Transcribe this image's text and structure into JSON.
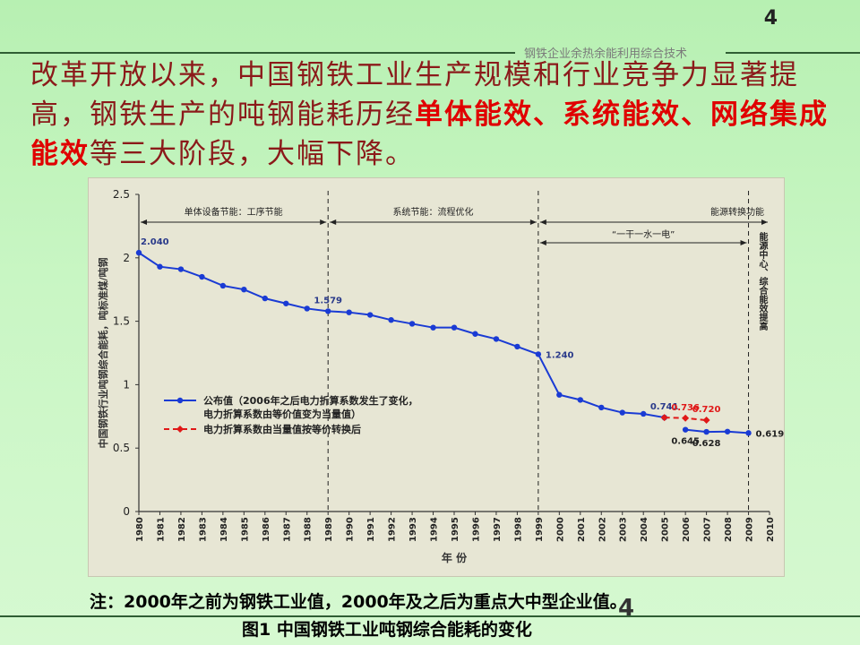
{
  "page_number": "4",
  "header_tag": "钢铁企业余热余能利用综合技术",
  "headline": {
    "part1": "改革开放以来，中国钢铁工业生产规模和行业竞争力显著提高，钢铁生产的吨钢能耗历经",
    "hl1": "单体能效、系统能效、网络集成能效",
    "part2": "等三大阶段，大幅下降。"
  },
  "note": "注：2000年之前为钢铁工业值，2000年及之后为重点大中型企业值。",
  "caption": "图1 中国钢铁工业吨钢综合能耗的变化",
  "page_number_bottom": "4",
  "colors": {
    "series1": "#1a3bd4",
    "series2": "#e01818",
    "headline": "#8b1a1a",
    "highlight": "#e00000"
  },
  "chart_data": {
    "type": "line",
    "xlabel": "年    份",
    "ylabel": "中国钢铁行业吨钢综合能耗，吨标准煤/吨钢",
    "xlim": [
      1980,
      2010
    ],
    "ylim": [
      0,
      2.5
    ],
    "yticks": [
      "0",
      "0.5",
      "1",
      "1.5",
      "2",
      "2.5"
    ],
    "xticks": [
      "1980",
      "1981",
      "1982",
      "1983",
      "1984",
      "1985",
      "1986",
      "1987",
      "1988",
      "1989",
      "1990",
      "1991",
      "1992",
      "1993",
      "1994",
      "1995",
      "1996",
      "1997",
      "1998",
      "1999",
      "2000",
      "2001",
      "2002",
      "2003",
      "2004",
      "2005",
      "2006",
      "2007",
      "2008",
      "2009",
      "2010"
    ],
    "grid": false,
    "legend_placement": "center-left",
    "series": [
      {
        "name": "公布值（2006年之后电力折算系数发生了变化，电力折算系数由等价值变为当量值）",
        "segments": [
          {
            "x": [
              1980,
              1981,
              1982,
              1983,
              1984,
              1985,
              1986,
              1987,
              1988,
              1989,
              1990,
              1991,
              1992,
              1993,
              1994,
              1995,
              1996,
              1997,
              1998,
              1999,
              2000,
              2001,
              2002,
              2003,
              2004,
              2005
            ],
            "y": [
              2.04,
              1.93,
              1.91,
              1.85,
              1.78,
              1.75,
              1.68,
              1.64,
              1.6,
              1.579,
              1.57,
              1.55,
              1.51,
              1.48,
              1.45,
              1.45,
              1.4,
              1.36,
              1.3,
              1.24,
              0.92,
              0.88,
              0.82,
              0.78,
              0.77,
              0.741
            ]
          },
          {
            "x": [
              2006,
              2007,
              2008,
              2009
            ],
            "y": [
              0.645,
              0.628,
              0.63,
              0.619
            ]
          }
        ]
      },
      {
        "name": "电力折算系数由当量值按等价转换后",
        "dashed": true,
        "segments": [
          {
            "x": [
              2005,
              2006,
              2007
            ],
            "y": [
              0.741,
              0.736,
              0.72
            ]
          }
        ]
      }
    ],
    "value_labels": [
      {
        "text": "2.040",
        "x": 1980,
        "y": 2.04,
        "pos": "above"
      },
      {
        "text": "1.579",
        "x": 1989,
        "y": 1.579,
        "pos": "above"
      },
      {
        "text": "1.240",
        "x": 1999,
        "y": 1.24,
        "pos": "right"
      },
      {
        "text": "0.741",
        "x": 2005,
        "y": 0.741,
        "pos": "above"
      },
      {
        "text": "0.736",
        "x": 2006,
        "y": 0.736,
        "pos": "above",
        "color": "red"
      },
      {
        "text": "0.720",
        "x": 2007,
        "y": 0.72,
        "pos": "above",
        "color": "red"
      },
      {
        "text": "0.645",
        "x": 2006,
        "y": 0.645,
        "pos": "below"
      },
      {
        "text": "0.628",
        "x": 2007,
        "y": 0.628,
        "pos": "below"
      },
      {
        "text": "0.619",
        "x": 2009,
        "y": 0.619,
        "pos": "right"
      }
    ],
    "phase_dividers": [
      1989,
      1999,
      2009
    ],
    "phases": [
      {
        "label": "单体设备节能：工序节能",
        "from": 1980,
        "to": 1989
      },
      {
        "label": "系统节能：流程优化",
        "from": 1989,
        "to": 1999
      },
      {
        "label": "能源转换功能",
        "from": 1999,
        "to": 2010
      }
    ],
    "sub_phase": {
      "label": "“一干一水一电”",
      "from": 1999,
      "to": 2009
    },
    "side_note": "能源中心、综合能效提高"
  }
}
